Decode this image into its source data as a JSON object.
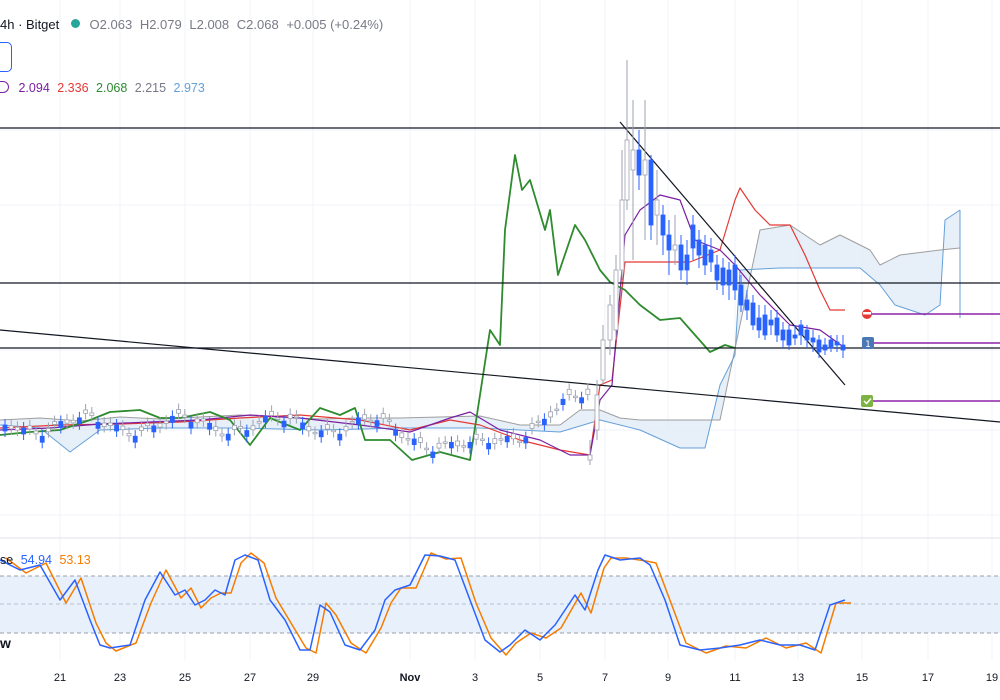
{
  "header": {
    "title": "4h · Bitget",
    "o_label": "O",
    "o": "2.063",
    "h_label": "H",
    "h": "2.079",
    "l_label": "L",
    "l": "2.008",
    "c_label": "C",
    "c": "2.068",
    "change": "+0.005 (+0.24%)"
  },
  "ichimoku_legend": [
    "2.094",
    "2.336",
    "2.068",
    "2.215",
    "2.973"
  ],
  "oscillator": {
    "label": "se",
    "k": "54.94",
    "d": "53.13",
    "side_label": "w"
  },
  "alert_tags": [
    "1"
  ],
  "colors": {
    "candle": "#2962ff",
    "green_line": "#2e8b2e",
    "tenkan": "#7b1fa2",
    "kijun": "#e53935",
    "span_a": "#9e9e9e",
    "span_b": "#64a0d8",
    "osc_k": "#2962ff",
    "osc_d": "#f57c00"
  },
  "chart_data": {
    "type": "candlestick",
    "x_tick_labels": [
      "21",
      "23",
      "25",
      "27",
      "29",
      "Nov",
      "3",
      "5",
      "7",
      "9",
      "11",
      "13",
      "15",
      "17",
      "19"
    ],
    "candles_close_approx": [
      2.0,
      2.01,
      2.0,
      2.02,
      2.0,
      2.01,
      2.0,
      2.02,
      2.01,
      2.0,
      2.01,
      2.02,
      2.0,
      2.01,
      2.02,
      2.03,
      2.02,
      2.0,
      1.98,
      1.95,
      1.96,
      1.94,
      1.93,
      1.95,
      2.0,
      2.3,
      2.5,
      3.2,
      3.6,
      3.3,
      2.9,
      2.7,
      2.75,
      2.6,
      2.55,
      2.5,
      2.4,
      2.35,
      2.3,
      2.2,
      2.15,
      2.1,
      2.07
    ],
    "oscillator_range": [
      0,
      100
    ]
  }
}
